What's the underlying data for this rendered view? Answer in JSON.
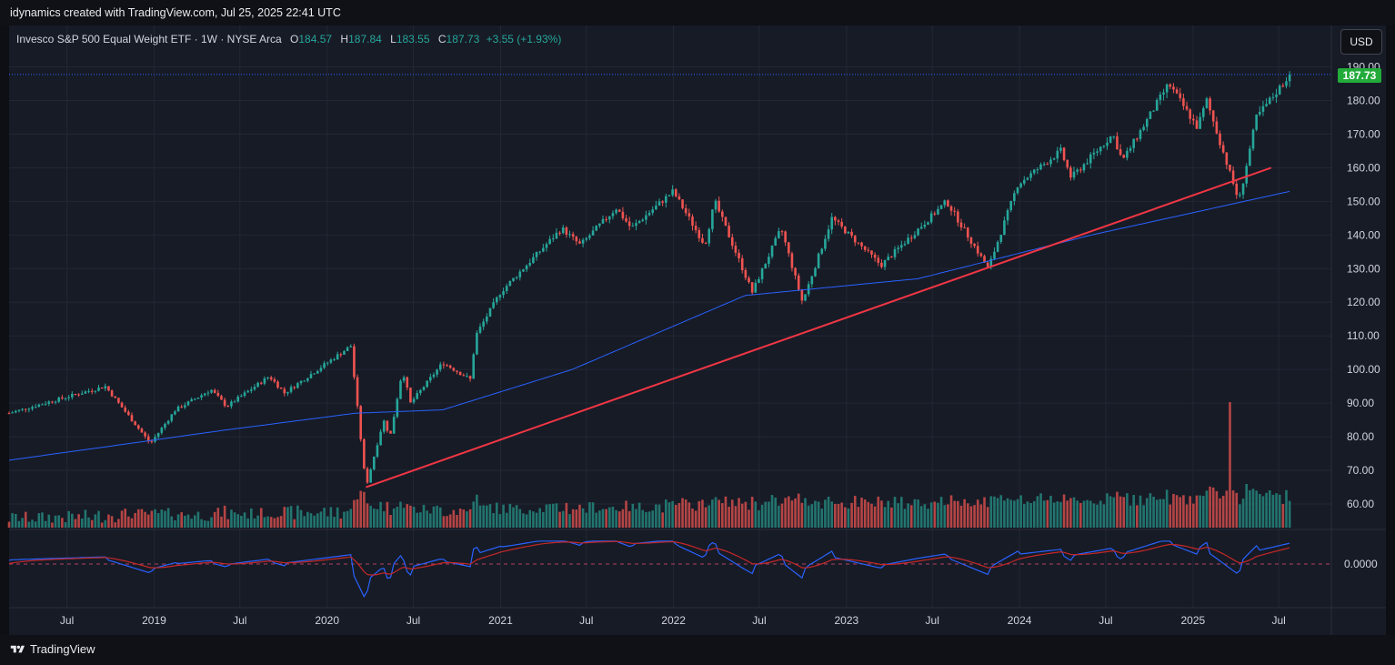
{
  "header": {
    "caption": "idynamics created with TradingView.com, Jul 25, 2025 22:41 UTC"
  },
  "legend": {
    "symbol": "Invesco S&P 500 Equal Weight ETF · 1W · NYSE Arca",
    "o_label": "O",
    "o_value": "184.57",
    "h_label": "H",
    "h_value": "187.84",
    "l_label": "L",
    "l_value": "183.55",
    "c_label": "C",
    "c_value": "187.73",
    "change": "+3.55 (+1.93%)"
  },
  "currency_button": "USD",
  "last_price_label": "187.73",
  "footer": {
    "brand": "TradingView"
  },
  "colors": {
    "up": "#26a69a",
    "down": "#ef5350",
    "ma": "#2962ff",
    "trendline": "#f23645",
    "badge": "#22ab3a"
  },
  "chart_data": {
    "type": "candlestick",
    "timeframe": "1W",
    "y_ticks": [
      190,
      180,
      170,
      160,
      150,
      140,
      130,
      120,
      110,
      100,
      90,
      80,
      70,
      60
    ],
    "ylim": [
      55,
      192
    ],
    "last_price": 187.73,
    "x_ticks": [
      "Jul",
      "2019",
      "Jul",
      "2020",
      "Jul",
      "2021",
      "Jul",
      "2022",
      "Jul",
      "2023",
      "Jul",
      "2024",
      "Jul",
      "2025",
      "Jul"
    ],
    "x_tick_dates": [
      "2018-07-01",
      "2019-01-01",
      "2019-07-01",
      "2020-01-01",
      "2020-07-01",
      "2021-01-01",
      "2021-07-01",
      "2022-01-01",
      "2022-07-01",
      "2023-01-01",
      "2023-07-01",
      "2024-01-01",
      "2024-07-01",
      "2025-01-01",
      "2025-07-01"
    ],
    "x_range": [
      "2018-03-01",
      "2025-10-20"
    ],
    "close_anchors": [
      [
        "2018-03-01",
        87
      ],
      [
        "2018-05-15",
        90
      ],
      [
        "2018-09-20",
        95
      ],
      [
        "2018-12-24",
        78
      ],
      [
        "2019-02-15",
        88
      ],
      [
        "2019-05-01",
        94
      ],
      [
        "2019-06-03",
        89
      ],
      [
        "2019-09-01",
        98
      ],
      [
        "2019-10-03",
        93
      ],
      [
        "2020-01-01",
        102
      ],
      [
        "2020-02-20",
        107
      ],
      [
        "2020-03-23",
        65
      ],
      [
        "2020-04-29",
        85
      ],
      [
        "2020-05-13",
        80
      ],
      [
        "2020-06-08",
        100
      ],
      [
        "2020-06-25",
        90
      ],
      [
        "2020-09-01",
        102
      ],
      [
        "2020-10-30",
        97
      ],
      [
        "2020-11-09",
        110
      ],
      [
        "2021-01-01",
        123
      ],
      [
        "2021-05-10",
        142
      ],
      [
        "2021-06-18",
        137
      ],
      [
        "2021-09-02",
        148
      ],
      [
        "2021-10-04",
        142
      ],
      [
        "2021-12-31",
        153
      ],
      [
        "2022-03-08",
        137
      ],
      [
        "2022-03-29",
        150
      ],
      [
        "2022-06-16",
        123
      ],
      [
        "2022-08-16",
        142
      ],
      [
        "2022-09-30",
        120
      ],
      [
        "2022-12-01",
        145
      ],
      [
        "2023-03-15",
        131
      ],
      [
        "2023-07-31",
        150
      ],
      [
        "2023-10-27",
        130
      ],
      [
        "2023-12-28",
        155
      ],
      [
        "2024-03-28",
        165
      ],
      [
        "2024-04-19",
        157
      ],
      [
        "2024-07-16",
        170
      ],
      [
        "2024-08-05",
        162
      ],
      [
        "2024-11-11",
        185
      ],
      [
        "2025-01-10",
        172
      ],
      [
        "2025-01-30",
        180
      ],
      [
        "2025-04-08",
        150
      ],
      [
        "2025-05-15",
        175
      ],
      [
        "2025-07-25",
        187.73
      ]
    ],
    "moving_average_anchors": [
      [
        "2018-03-01",
        73
      ],
      [
        "2019-06-01",
        82
      ],
      [
        "2020-03-01",
        87
      ],
      [
        "2020-09-01",
        88
      ],
      [
        "2021-06-01",
        100
      ],
      [
        "2022-06-01",
        122
      ],
      [
        "2023-06-01",
        127
      ],
      [
        "2024-06-01",
        140
      ],
      [
        "2025-07-25",
        153
      ]
    ],
    "trendline": {
      "start": [
        "2020-03-23",
        65
      ],
      "end": [
        "2025-06-15",
        160
      ]
    },
    "volume": {
      "spike_date": "2025-03-21"
    },
    "oscillator": {
      "zero_line_label": "0.0000"
    }
  }
}
